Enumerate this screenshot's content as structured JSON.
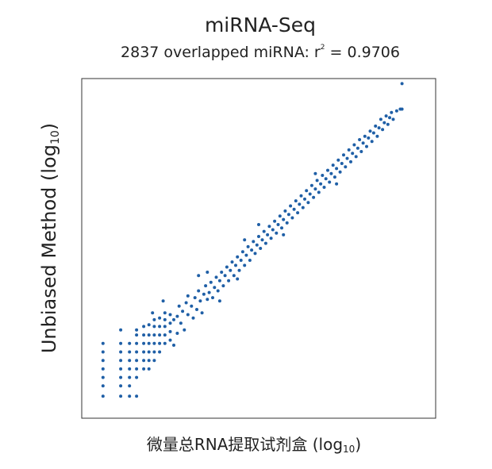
{
  "chart_data": {
    "type": "scatter",
    "title": "miRNA-Seq",
    "subtitle_prefix": "2837 overlapped miRNA: r",
    "subtitle_sup": "2",
    "subtitle_suffix": " = 0.9706",
    "xlabel": "微量总RNA提取试剂盒 (log",
    "xlabel_sub": "10",
    "xlabel_close": ")",
    "ylabel": "Unbiased Method (log",
    "ylabel_sub": "10",
    "ylabel_close": ")",
    "xlim": [
      0,
      10
    ],
    "ylim": [
      0,
      10
    ],
    "grid": false,
    "marker_color": "#1f5fa6",
    "series": [
      {
        "points": [
          [
            0.6,
            0.65
          ],
          [
            0.6,
            0.95
          ],
          [
            0.6,
            1.2
          ],
          [
            0.6,
            1.45
          ],
          [
            0.6,
            1.7
          ],
          [
            0.6,
            1.95
          ],
          [
            0.6,
            2.2
          ],
          [
            1.1,
            0.65
          ],
          [
            1.1,
            0.95
          ],
          [
            1.1,
            1.2
          ],
          [
            1.1,
            1.45
          ],
          [
            1.1,
            1.7
          ],
          [
            1.1,
            1.95
          ],
          [
            1.1,
            2.2
          ],
          [
            1.1,
            2.6
          ],
          [
            1.35,
            0.65
          ],
          [
            1.35,
            0.95
          ],
          [
            1.35,
            1.2
          ],
          [
            1.35,
            1.45
          ],
          [
            1.35,
            1.7
          ],
          [
            1.35,
            1.95
          ],
          [
            1.35,
            2.2
          ],
          [
            1.55,
            0.65
          ],
          [
            1.55,
            1.2
          ],
          [
            1.55,
            1.45
          ],
          [
            1.55,
            1.7
          ],
          [
            1.55,
            1.95
          ],
          [
            1.55,
            2.2
          ],
          [
            1.55,
            2.45
          ],
          [
            1.55,
            2.6
          ],
          [
            1.75,
            1.45
          ],
          [
            1.75,
            1.7
          ],
          [
            1.75,
            1.95
          ],
          [
            1.75,
            2.2
          ],
          [
            1.75,
            2.45
          ],
          [
            1.75,
            2.7
          ],
          [
            1.9,
            1.45
          ],
          [
            1.9,
            1.7
          ],
          [
            1.9,
            1.95
          ],
          [
            1.9,
            2.2
          ],
          [
            1.9,
            2.45
          ],
          [
            1.9,
            2.75
          ],
          [
            2.05,
            1.7
          ],
          [
            2.05,
            1.95
          ],
          [
            2.05,
            2.2
          ],
          [
            2.05,
            2.45
          ],
          [
            2.05,
            2.7
          ],
          [
            2.05,
            2.9
          ],
          [
            2.2,
            1.95
          ],
          [
            2.2,
            2.2
          ],
          [
            2.2,
            2.45
          ],
          [
            2.2,
            2.7
          ],
          [
            2.2,
            2.95
          ],
          [
            2.35,
            2.2
          ],
          [
            2.35,
            2.45
          ],
          [
            2.35,
            2.7
          ],
          [
            2.35,
            2.9
          ],
          [
            2.35,
            3.1
          ],
          [
            2.5,
            2.3
          ],
          [
            2.5,
            2.55
          ],
          [
            2.5,
            2.8
          ],
          [
            2.5,
            3.05
          ],
          [
            2.6,
            2.9
          ],
          [
            2.7,
            2.5
          ],
          [
            2.7,
            3.0
          ],
          [
            2.75,
            3.3
          ],
          [
            2.8,
            2.8
          ],
          [
            2.85,
            3.15
          ],
          [
            2.9,
            2.6
          ],
          [
            2.95,
            3.4
          ],
          [
            3.0,
            3.05
          ],
          [
            3.0,
            3.6
          ],
          [
            3.1,
            3.3
          ],
          [
            3.15,
            2.95
          ],
          [
            3.2,
            3.55
          ],
          [
            3.25,
            3.2
          ],
          [
            3.3,
            3.75
          ],
          [
            3.35,
            3.45
          ],
          [
            3.4,
            3.1
          ],
          [
            3.45,
            3.65
          ],
          [
            3.5,
            3.9
          ],
          [
            3.55,
            3.5
          ],
          [
            3.6,
            3.7
          ],
          [
            3.65,
            4.0
          ],
          [
            3.7,
            3.55
          ],
          [
            3.75,
            3.85
          ],
          [
            3.8,
            4.15
          ],
          [
            3.85,
            3.75
          ],
          [
            3.9,
            4.05
          ],
          [
            3.95,
            4.3
          ],
          [
            4.0,
            3.9
          ],
          [
            4.05,
            4.2
          ],
          [
            4.1,
            4.45
          ],
          [
            4.15,
            4.05
          ],
          [
            4.2,
            4.35
          ],
          [
            4.25,
            4.6
          ],
          [
            4.3,
            4.2
          ],
          [
            4.35,
            4.5
          ],
          [
            4.4,
            4.75
          ],
          [
            4.45,
            4.35
          ],
          [
            4.5,
            4.65
          ],
          [
            4.55,
            4.9
          ],
          [
            4.6,
            4.5
          ],
          [
            4.65,
            4.8
          ],
          [
            4.7,
            5.05
          ],
          [
            4.75,
            4.65
          ],
          [
            4.8,
            4.95
          ],
          [
            4.85,
            5.2
          ],
          [
            4.9,
            4.85
          ],
          [
            4.95,
            5.1
          ],
          [
            5.0,
            5.35
          ],
          [
            5.05,
            5.0
          ],
          [
            5.1,
            5.25
          ],
          [
            5.15,
            5.5
          ],
          [
            5.2,
            5.15
          ],
          [
            5.25,
            5.4
          ],
          [
            5.3,
            5.65
          ],
          [
            5.35,
            5.3
          ],
          [
            5.4,
            5.55
          ],
          [
            5.45,
            5.8
          ],
          [
            5.5,
            5.45
          ],
          [
            5.55,
            5.7
          ],
          [
            5.6,
            5.95
          ],
          [
            5.65,
            5.6
          ],
          [
            5.7,
            5.85
          ],
          [
            5.75,
            6.1
          ],
          [
            5.8,
            5.75
          ],
          [
            5.85,
            6.0
          ],
          [
            5.9,
            6.25
          ],
          [
            5.95,
            5.9
          ],
          [
            6.0,
            6.15
          ],
          [
            6.05,
            6.4
          ],
          [
            6.1,
            6.05
          ],
          [
            6.15,
            6.3
          ],
          [
            6.2,
            6.55
          ],
          [
            6.25,
            6.2
          ],
          [
            6.3,
            6.45
          ],
          [
            6.35,
            6.7
          ],
          [
            6.4,
            6.35
          ],
          [
            6.45,
            6.6
          ],
          [
            6.5,
            6.85
          ],
          [
            6.55,
            6.5
          ],
          [
            6.6,
            6.75
          ],
          [
            6.65,
            7.0
          ],
          [
            6.7,
            6.65
          ],
          [
            6.75,
            6.9
          ],
          [
            6.8,
            7.15
          ],
          [
            6.85,
            6.8
          ],
          [
            6.9,
            7.05
          ],
          [
            6.95,
            7.3
          ],
          [
            7.0,
            6.95
          ],
          [
            7.05,
            7.2
          ],
          [
            7.1,
            7.45
          ],
          [
            7.15,
            7.1
          ],
          [
            7.2,
            7.35
          ],
          [
            7.25,
            7.6
          ],
          [
            7.3,
            7.25
          ],
          [
            7.35,
            7.5
          ],
          [
            7.4,
            7.75
          ],
          [
            7.45,
            7.4
          ],
          [
            7.5,
            7.65
          ],
          [
            7.55,
            7.9
          ],
          [
            7.6,
            7.55
          ],
          [
            7.65,
            7.8
          ],
          [
            7.7,
            8.05
          ],
          [
            7.75,
            7.7
          ],
          [
            7.8,
            7.95
          ],
          [
            7.85,
            8.2
          ],
          [
            7.9,
            7.85
          ],
          [
            7.95,
            8.1
          ],
          [
            8.0,
            8.3
          ],
          [
            8.05,
            8.0
          ],
          [
            8.1,
            8.25
          ],
          [
            8.15,
            8.45
          ],
          [
            8.2,
            8.15
          ],
          [
            8.25,
            8.4
          ],
          [
            8.3,
            8.6
          ],
          [
            8.35,
            8.3
          ],
          [
            8.4,
            8.55
          ],
          [
            8.45,
            8.8
          ],
          [
            8.5,
            8.5
          ],
          [
            8.55,
            8.7
          ],
          [
            8.6,
            8.9
          ],
          [
            8.65,
            8.65
          ],
          [
            8.7,
            8.85
          ],
          [
            8.75,
            9.0
          ],
          [
            8.8,
            8.8
          ],
          [
            8.9,
            9.05
          ],
          [
            9.0,
            9.1
          ],
          [
            9.05,
            9.1
          ],
          [
            3.3,
            4.2
          ],
          [
            4.4,
            4.1
          ],
          [
            2.3,
            3.45
          ],
          [
            3.9,
            3.45
          ],
          [
            5.7,
            5.4
          ],
          [
            6.6,
            7.2
          ],
          [
            7.2,
            6.9
          ],
          [
            5.0,
            5.7
          ],
          [
            4.6,
            5.25
          ],
          [
            3.55,
            4.3
          ],
          [
            2.6,
            2.15
          ],
          [
            2.0,
            3.1
          ],
          [
            9.05,
            9.85
          ]
        ]
      }
    ]
  }
}
